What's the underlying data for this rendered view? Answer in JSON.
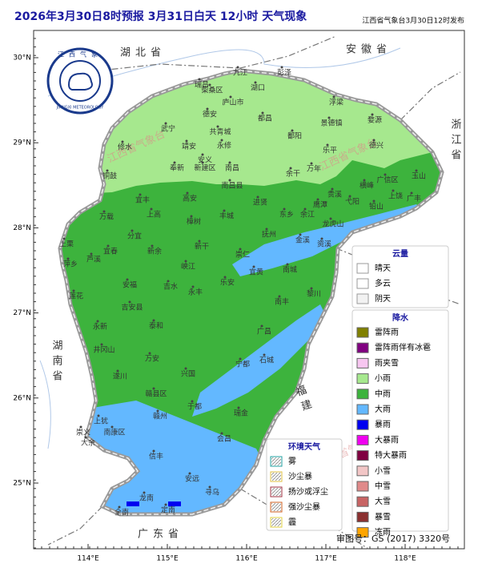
{
  "header": {
    "title": "2026年3月30日8时预报 3月31日白天 12小时  天气现象",
    "publisher": "江西省气象台3月30日12时发布"
  },
  "logo": {
    "top": "江西气象",
    "bottom": "JIANGXI METEOROLOGY"
  },
  "watermark": "江西省气象台",
  "axes": {
    "lat_ticks": [
      {
        "value": 30,
        "label": "30°N"
      },
      {
        "value": 29,
        "label": "29°N"
      },
      {
        "value": 28,
        "label": "28°N"
      },
      {
        "value": 27,
        "label": "27°N"
      },
      {
        "value": 26,
        "label": "26°N"
      },
      {
        "value": 25,
        "label": "25°N"
      }
    ],
    "lon_ticks": [
      {
        "value": 114,
        "label": "114°E"
      },
      {
        "value": 115,
        "label": "115°E"
      },
      {
        "value": 116,
        "label": "116°E"
      },
      {
        "value": 117,
        "label": "117°E"
      },
      {
        "value": 118,
        "label": "118°E"
      }
    ]
  },
  "provinces": [
    "湖北省",
    "安徽省",
    "浙江省",
    "湖南省",
    "广东省",
    "福建"
  ],
  "cities": [
    "九江",
    "彭泽",
    "瑞昌",
    "柴桑区",
    "湖口",
    "庐山市",
    "德安",
    "都昌",
    "共青城",
    "武宁",
    "修水",
    "永修",
    "靖安",
    "安义",
    "奉新",
    "新建区",
    "南昌",
    "南昌县",
    "铜鼓",
    "宜丰",
    "高安",
    "进贤",
    "万载",
    "上高",
    "丰城",
    "樟树",
    "鄱阳",
    "浮梁",
    "景德镇",
    "婺源",
    "乐平",
    "德兴",
    "余干",
    "万年",
    "玉山",
    "广信区",
    "上饶",
    "广丰",
    "横峰",
    "弋阳",
    "铅山",
    "贵溪",
    "余江",
    "鹰潭",
    "东乡",
    "龙虎山",
    "抚州",
    "金溪",
    "资溪",
    "分宜",
    "宜春",
    "新余",
    "萍乡",
    "芦溪",
    "上栗",
    "新干",
    "峡江",
    "崇仁",
    "宜黄",
    "南城",
    "黎川",
    "南丰",
    "乐安",
    "吉水",
    "永丰",
    "安福",
    "吉安县",
    "莲花",
    "永新",
    "泰和",
    "广昌",
    "井冈山",
    "遂川",
    "万安",
    "兴国",
    "宁都",
    "石城",
    "赣县区",
    "赣州",
    "于都",
    "瑞金",
    "会昌",
    "上犹",
    "崇义",
    "南康区",
    "大余",
    "信丰",
    "安远",
    "寻乌",
    "龙南",
    "全南",
    "定南"
  ],
  "legend_cloud": {
    "title": "云量",
    "items": [
      "晴天",
      "多云",
      "阴天"
    ]
  },
  "legend_precip": {
    "title": "降水",
    "items": [
      {
        "label": "雷阵雨",
        "color": "#808000"
      },
      {
        "label": "雷阵雨伴有冰雹",
        "color": "#800080"
      },
      {
        "label": "雨夹雪",
        "color": "#f7c6f0"
      },
      {
        "label": "小雨",
        "color": "#a6e88e"
      },
      {
        "label": "中雨",
        "color": "#3db33d"
      },
      {
        "label": "大雨",
        "color": "#63b8ff"
      },
      {
        "label": "暴雨",
        "color": "#0000f0"
      },
      {
        "label": "大暴雨",
        "color": "#f000f0"
      },
      {
        "label": "特大暴雨",
        "color": "#7f0040"
      },
      {
        "label": "小雪",
        "color": "#f2c6c6"
      },
      {
        "label": "中雪",
        "color": "#e08a8a"
      },
      {
        "label": "大雪",
        "color": "#c86464"
      },
      {
        "label": "暴雪",
        "color": "#8b3030"
      },
      {
        "label": "冻雨",
        "color": "#ffa500"
      }
    ]
  },
  "legend_env": {
    "title": "环境天气",
    "items": [
      {
        "label": "雾",
        "color": "#20a0a0"
      },
      {
        "label": "沙尘暴",
        "color": "#e0c040"
      },
      {
        "label": "扬沙或浮尘",
        "color": "#a03040"
      },
      {
        "label": "强沙尘暴",
        "color": "#d06020"
      },
      {
        "label": "霾",
        "color": "#e0d040"
      }
    ]
  },
  "footer": "审图号：GS (2017) 3320号"
}
